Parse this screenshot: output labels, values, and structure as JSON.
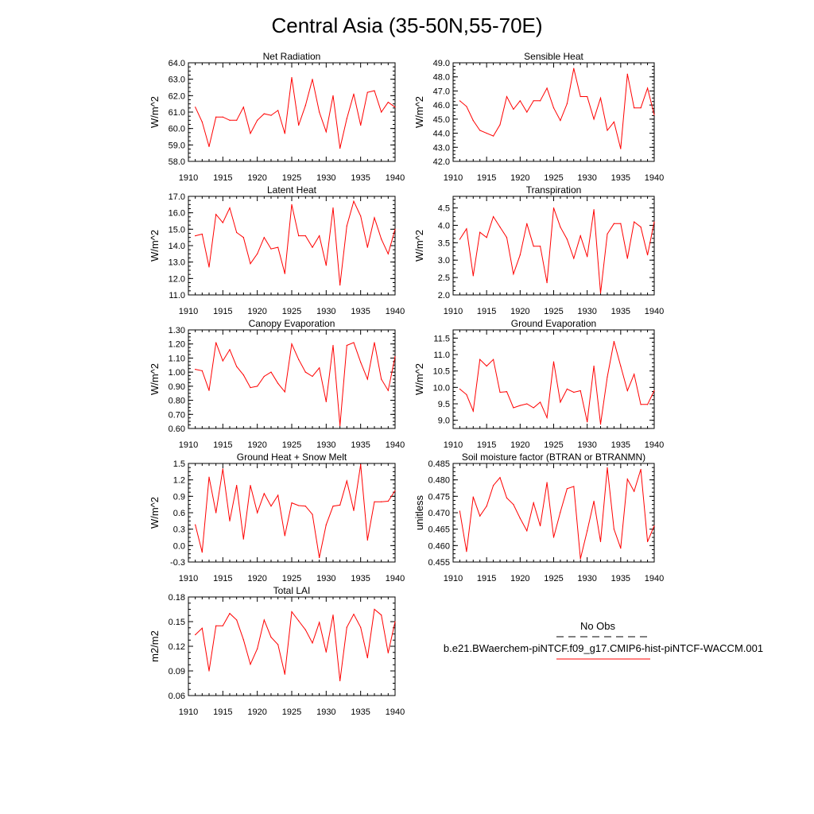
{
  "title": "Central Asia (35-50N,55-70E)",
  "colors": {
    "series": "#ff0000",
    "axes": "#000000"
  },
  "legend": {
    "obs_label": "No Obs",
    "case_label": "b.e21.BWaerchem-piNTCF.f09_g17.CMIP6-hist-piNTCF-WACCM.001"
  },
  "chart_data": [
    {
      "type": "line",
      "title": "Net Radiation",
      "ylabel": "W/m^2",
      "xlim": [
        1910,
        1940
      ],
      "ylim": [
        58,
        64
      ],
      "xticks": [
        "1910",
        "1915",
        "1920",
        "1925",
        "1930",
        "1935",
        "1940"
      ],
      "yticks": [
        "58.0",
        "59.0",
        "60.0",
        "61.0",
        "62.0",
        "63.0",
        "64.0"
      ],
      "x": [
        1911,
        1912,
        1913,
        1914,
        1915,
        1916,
        1917,
        1918,
        1919,
        1920,
        1921,
        1922,
        1923,
        1924,
        1925,
        1926,
        1927,
        1928,
        1929,
        1930,
        1931,
        1932,
        1933,
        1934,
        1935,
        1936,
        1937,
        1938,
        1939,
        1940
      ],
      "series": [
        {
          "values": [
            61.3,
            60.4,
            58.9,
            60.7,
            60.7,
            60.5,
            60.5,
            61.3,
            59.7,
            60.5,
            60.9,
            60.8,
            61.1,
            59.7,
            63.1,
            60.2,
            61.4,
            63.0,
            61.0,
            59.8,
            62.0,
            58.8,
            60.6,
            62.1,
            60.2,
            62.2,
            62.3,
            61.0,
            61.6,
            61.3
          ]
        }
      ]
    },
    {
      "type": "line",
      "title": "Sensible Heat",
      "ylabel": "W/m^2",
      "xlim": [
        1910,
        1940
      ],
      "ylim": [
        42,
        49
      ],
      "xticks": [
        "1910",
        "1915",
        "1920",
        "1925",
        "1930",
        "1935",
        "1940"
      ],
      "yticks": [
        "42.0",
        "43.0",
        "44.0",
        "45.0",
        "46.0",
        "47.0",
        "48.0",
        "49.0"
      ],
      "x": [
        1911,
        1912,
        1913,
        1914,
        1915,
        1916,
        1917,
        1918,
        1919,
        1920,
        1921,
        1922,
        1923,
        1924,
        1925,
        1926,
        1927,
        1928,
        1929,
        1930,
        1931,
        1932,
        1933,
        1934,
        1935,
        1936,
        1937,
        1938,
        1939,
        1940
      ],
      "series": [
        {
          "values": [
            46.3,
            45.9,
            44.9,
            44.2,
            44.0,
            43.8,
            44.6,
            46.6,
            45.7,
            46.3,
            45.5,
            46.3,
            46.3,
            47.2,
            45.8,
            44.9,
            46.1,
            48.6,
            46.6,
            46.6,
            45.0,
            46.5,
            44.2,
            44.8,
            42.9,
            48.2,
            45.8,
            45.8,
            47.2,
            45.3
          ]
        }
      ]
    },
    {
      "type": "line",
      "title": "Latent Heat",
      "ylabel": "W/m^2",
      "xlim": [
        1910,
        1940
      ],
      "ylim": [
        11,
        17
      ],
      "xticks": [
        "1910",
        "1915",
        "1920",
        "1925",
        "1930",
        "1935",
        "1940"
      ],
      "yticks": [
        "11.0",
        "12.0",
        "13.0",
        "14.0",
        "15.0",
        "16.0",
        "17.0"
      ],
      "x": [
        1911,
        1912,
        1913,
        1914,
        1915,
        1916,
        1917,
        1918,
        1919,
        1920,
        1921,
        1922,
        1923,
        1924,
        1925,
        1926,
        1927,
        1928,
        1929,
        1930,
        1931,
        1932,
        1933,
        1934,
        1935,
        1936,
        1937,
        1938,
        1939,
        1940
      ],
      "series": [
        {
          "values": [
            14.6,
            14.7,
            12.7,
            15.9,
            15.4,
            16.3,
            14.8,
            14.5,
            12.9,
            13.5,
            14.5,
            13.8,
            13.9,
            12.3,
            16.5,
            14.6,
            14.6,
            13.9,
            14.6,
            12.8,
            16.3,
            11.6,
            15.2,
            16.7,
            15.8,
            13.9,
            15.7,
            14.4,
            13.5,
            15.0
          ]
        }
      ]
    },
    {
      "type": "line",
      "title": "Transpiration",
      "ylabel": "W/m^2",
      "xlim": [
        1910,
        1940
      ],
      "ylim": [
        2,
        4.833
      ],
      "xticks": [
        "1910",
        "1915",
        "1920",
        "1925",
        "1930",
        "1935",
        "1940"
      ],
      "yticks": [
        "2.0",
        "2.5",
        "3.0",
        "3.5",
        "4.0",
        "4.5"
      ],
      "x": [
        1911,
        1912,
        1913,
        1914,
        1915,
        1916,
        1917,
        1918,
        1919,
        1920,
        1921,
        1922,
        1923,
        1924,
        1925,
        1926,
        1927,
        1928,
        1929,
        1930,
        1931,
        1932,
        1933,
        1934,
        1935,
        1936,
        1937,
        1938,
        1939,
        1940
      ],
      "series": [
        {
          "values": [
            3.6,
            3.9,
            2.55,
            3.8,
            3.65,
            4.25,
            3.95,
            3.65,
            2.6,
            3.15,
            4.05,
            3.4,
            3.4,
            2.35,
            4.5,
            3.95,
            3.6,
            3.05,
            3.7,
            3.1,
            4.45,
            2.05,
            3.75,
            4.05,
            4.05,
            3.05,
            4.1,
            3.95,
            3.15,
            4.1
          ]
        }
      ]
    },
    {
      "type": "line",
      "title": "Canopy Evaporation",
      "ylabel": "W/m^2",
      "xlim": [
        1910,
        1940
      ],
      "ylim": [
        0.6,
        1.3
      ],
      "xticks": [
        "1910",
        "1915",
        "1920",
        "1925",
        "1930",
        "1935",
        "1940"
      ],
      "yticks": [
        "0.60",
        "0.70",
        "0.80",
        "0.90",
        "1.00",
        "1.10",
        "1.20",
        "1.30"
      ],
      "x": [
        1911,
        1912,
        1913,
        1914,
        1915,
        1916,
        1917,
        1918,
        1919,
        1920,
        1921,
        1922,
        1923,
        1924,
        1925,
        1926,
        1927,
        1928,
        1929,
        1930,
        1931,
        1932,
        1933,
        1934,
        1935,
        1936,
        1937,
        1938,
        1939,
        1940
      ],
      "series": [
        {
          "values": [
            1.02,
            1.01,
            0.87,
            1.21,
            1.08,
            1.16,
            1.04,
            0.98,
            0.89,
            0.9,
            0.97,
            1.0,
            0.92,
            0.86,
            1.2,
            1.09,
            1.0,
            0.97,
            1.03,
            0.79,
            1.19,
            0.62,
            1.19,
            1.21,
            1.07,
            0.95,
            1.21,
            0.95,
            0.87,
            1.11
          ]
        }
      ]
    },
    {
      "type": "line",
      "title": "Ground Evaporation",
      "ylabel": "W/m^2",
      "xlim": [
        1910,
        1940
      ],
      "ylim": [
        8.75,
        11.75
      ],
      "xticks": [
        "1910",
        "1915",
        "1920",
        "1925",
        "1930",
        "1935",
        "1940"
      ],
      "yticks": [
        "9.0",
        "9.5",
        "10.0",
        "10.5",
        "11.0",
        "11.5"
      ],
      "x": [
        1911,
        1912,
        1913,
        1914,
        1915,
        1916,
        1917,
        1918,
        1919,
        1920,
        1921,
        1922,
        1923,
        1924,
        1925,
        1926,
        1927,
        1928,
        1929,
        1930,
        1931,
        1932,
        1933,
        1934,
        1935,
        1936,
        1937,
        1938,
        1939,
        1940
      ],
      "series": [
        {
          "values": [
            9.95,
            9.78,
            9.28,
            10.85,
            10.65,
            10.85,
            9.85,
            9.87,
            9.38,
            9.45,
            9.5,
            9.38,
            9.55,
            9.08,
            10.78,
            9.55,
            9.95,
            9.85,
            9.9,
            8.95,
            10.65,
            8.88,
            10.32,
            11.4,
            10.65,
            9.9,
            10.4,
            9.48,
            9.48,
            9.9
          ]
        }
      ]
    },
    {
      "type": "line",
      "title": "Ground Heat + Snow Melt",
      "ylabel": "W/m^2",
      "xlim": [
        1910,
        1940
      ],
      "ylim": [
        -0.3,
        1.5
      ],
      "xticks": [
        "1910",
        "1915",
        "1920",
        "1925",
        "1930",
        "1935",
        "1940"
      ],
      "yticks": [
        "-0.3",
        "0.0",
        "0.3",
        "0.6",
        "0.9",
        "1.2",
        "1.5"
      ],
      "x": [
        1911,
        1912,
        1913,
        1914,
        1915,
        1916,
        1917,
        1918,
        1919,
        1920,
        1921,
        1922,
        1923,
        1924,
        1925,
        1926,
        1927,
        1928,
        1929,
        1930,
        1931,
        1932,
        1933,
        1934,
        1935,
        1936,
        1937,
        1938,
        1939,
        1940
      ],
      "series": [
        {
          "values": [
            0.38,
            -0.12,
            1.25,
            0.6,
            1.4,
            0.45,
            1.1,
            0.12,
            1.1,
            0.6,
            0.95,
            0.72,
            0.92,
            0.18,
            0.78,
            0.73,
            0.72,
            0.57,
            -0.22,
            0.38,
            0.72,
            0.74,
            1.18,
            0.64,
            1.48,
            0.1,
            0.8,
            0.8,
            0.81,
            1.0
          ]
        }
      ]
    },
    {
      "type": "line",
      "title": "Soil moisture factor (BTRAN or BTRANMN)",
      "ylabel": "unitless",
      "xlim": [
        1910,
        1940
      ],
      "ylim": [
        0.455,
        0.485
      ],
      "xticks": [
        "1910",
        "1915",
        "1920",
        "1925",
        "1930",
        "1935",
        "1940"
      ],
      "yticks": [
        "0.455",
        "0.460",
        "0.465",
        "0.470",
        "0.475",
        "0.480",
        "0.485"
      ],
      "x": [
        1911,
        1912,
        1913,
        1914,
        1915,
        1916,
        1917,
        1918,
        1919,
        1920,
        1921,
        1922,
        1923,
        1924,
        1925,
        1926,
        1927,
        1928,
        1929,
        1930,
        1931,
        1932,
        1933,
        1934,
        1935,
        1936,
        1937,
        1938,
        1939,
        1940
      ],
      "series": [
        {
          "values": [
            0.4705,
            0.4582,
            0.4748,
            0.469,
            0.472,
            0.4783,
            0.4807,
            0.4745,
            0.4725,
            0.4683,
            0.4645,
            0.473,
            0.466,
            0.4792,
            0.4625,
            0.4702,
            0.4773,
            0.478,
            0.456,
            0.4645,
            0.4735,
            0.4612,
            0.4837,
            0.465,
            0.4592,
            0.4802,
            0.4765,
            0.4832,
            0.4612,
            0.466
          ]
        }
      ]
    },
    {
      "type": "line",
      "title": "Total LAI",
      "ylabel": "m2/m2",
      "xlim": [
        1910,
        1940
      ],
      "ylim": [
        0.06,
        0.18
      ],
      "xticks": [
        "1910",
        "1915",
        "1920",
        "1925",
        "1930",
        "1935",
        "1940"
      ],
      "yticks": [
        "0.06",
        "0.09",
        "0.12",
        "0.15",
        "0.18"
      ],
      "x": [
        1911,
        1912,
        1913,
        1914,
        1915,
        1916,
        1917,
        1918,
        1919,
        1920,
        1921,
        1922,
        1923,
        1924,
        1925,
        1926,
        1927,
        1928,
        1929,
        1930,
        1931,
        1932,
        1933,
        1934,
        1935,
        1936,
        1937,
        1938,
        1939,
        1940
      ],
      "series": [
        {
          "values": [
            0.134,
            0.142,
            0.09,
            0.145,
            0.145,
            0.16,
            0.152,
            0.128,
            0.098,
            0.117,
            0.152,
            0.131,
            0.122,
            0.086,
            0.162,
            0.151,
            0.14,
            0.124,
            0.149,
            0.113,
            0.158,
            0.078,
            0.143,
            0.159,
            0.143,
            0.106,
            0.165,
            0.158,
            0.112,
            0.15
          ]
        }
      ]
    }
  ]
}
